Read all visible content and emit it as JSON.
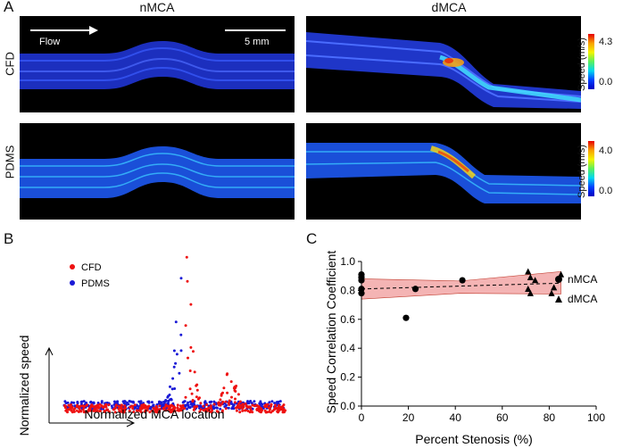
{
  "panels": {
    "a": "A",
    "b": "B",
    "c": "C"
  },
  "panel_a": {
    "col_titles": [
      "nMCA",
      "dMCA"
    ],
    "row_labels": [
      "CFD",
      "PDMS"
    ],
    "flow_label": "Flow",
    "scale_label": "5 mm",
    "colorbars": [
      {
        "label": "Speed (m/s)",
        "max": "4.3",
        "min": "0.0"
      },
      {
        "label": "Speed (m/s)",
        "max": "4.0",
        "min": "0.0"
      }
    ]
  },
  "chart_data": [
    {
      "type": "scatter",
      "panel": "B",
      "xlabel": "Normalized MCA location",
      "ylabel": "Normalized speed",
      "legend": [
        "CFD",
        "PDMS"
      ],
      "legend_position": "top-left",
      "series": [
        {
          "name": "CFD",
          "color": "#ee1111",
          "peak_x": 0.55,
          "peak_y": 1.0,
          "secondary_peak_x": 0.75,
          "secondary_peak_y": 0.23
        },
        {
          "name": "PDMS",
          "color": "#1a1ad6",
          "peak_x": 0.52,
          "peak_y": 0.89
        }
      ],
      "xlim": [
        0,
        1
      ],
      "ylim": [
        0,
        1.05
      ]
    },
    {
      "type": "scatter",
      "panel": "C",
      "xlabel": "Percent Stenosis (%)",
      "ylabel": "Speed Correlation Coefficient",
      "xlim": [
        0,
        100
      ],
      "ylim": [
        0,
        1.0
      ],
      "xticks": [
        "0",
        "20",
        "40",
        "60",
        "80",
        "100"
      ],
      "yticks": [
        "0.0",
        "0.2",
        "0.4",
        "0.6",
        "0.8",
        "1.0"
      ],
      "legend": [
        "nMCA",
        "dMCA"
      ],
      "series": [
        {
          "name": "nMCA",
          "marker": "circle",
          "x": [
            0,
            0,
            0,
            0,
            0,
            19,
            23,
            43
          ],
          "y": [
            0.91,
            0.89,
            0.87,
            0.81,
            0.78,
            0.61,
            0.81,
            0.87
          ]
        },
        {
          "name": "dMCA",
          "marker": "triangle",
          "x": [
            71,
            71,
            72,
            72,
            74,
            81,
            82,
            85
          ],
          "y": [
            0.93,
            0.81,
            0.89,
            0.78,
            0.87,
            0.78,
            0.82,
            0.91
          ]
        }
      ],
      "fit": {
        "style": "dashed",
        "x": [
          0,
          85
        ],
        "y": [
          0.81,
          0.85
        ]
      },
      "confidence_band": {
        "color": "#f4b4b4",
        "x": [
          0,
          42,
          85
        ],
        "upper": [
          0.88,
          0.865,
          0.93
        ],
        "lower": [
          0.74,
          0.78,
          0.775
        ]
      }
    }
  ]
}
